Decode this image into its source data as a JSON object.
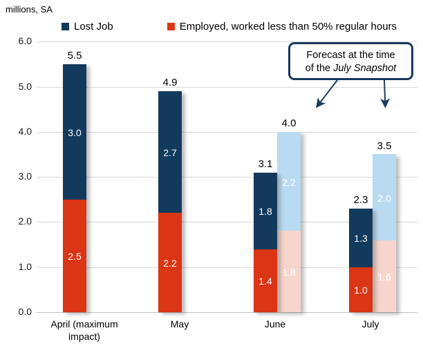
{
  "title": "millions, SA",
  "legend": {
    "items": [
      {
        "label": "Lost Job",
        "color": "#123a5c"
      },
      {
        "label": "Employed, worked less than 50% regular hours",
        "color": "#da3515"
      }
    ]
  },
  "annotation": {
    "line1": "Forecast at the time",
    "line2_prefix": "of the ",
    "line2_italic": "July Snapshot"
  },
  "chart_data": {
    "type": "bar",
    "stacked": true,
    "title": "millions, SA",
    "ylabel": "millions, SA",
    "ylim": [
      0,
      6
    ],
    "yticks": [
      "0.0",
      "1.0",
      "2.0",
      "3.0",
      "4.0",
      "5.0",
      "6.0"
    ],
    "grid": true,
    "legend_position": "top",
    "categories": [
      "April (maximum impact)",
      "May",
      "June",
      "July"
    ],
    "category_keys": [
      "april",
      "may",
      "june",
      "july"
    ],
    "series": [
      {
        "name": "Employed, worked less than 50% regular hours",
        "color": "#da3515",
        "label_color": "#ffffff",
        "values": [
          2.5,
          2.2,
          1.4,
          1.0
        ]
      },
      {
        "name": "Lost Job",
        "color": "#123a5c",
        "label_color": "#ffffff",
        "values": [
          3.0,
          2.7,
          1.8,
          1.3
        ]
      }
    ],
    "totals": [
      5.5,
      4.9,
      3.1,
      2.3
    ],
    "forecast": {
      "note": "Forecast at the time of the July Snapshot",
      "series": [
        {
          "name": "Employed, worked less than 50% regular hours (forecast)",
          "color": "#f7d5cd",
          "label_color": "#ffffff",
          "values": [
            null,
            null,
            1.8,
            1.6
          ]
        },
        {
          "name": "Lost Job (forecast)",
          "color": "#b9dbf2",
          "label_color": "#ffffff",
          "values": [
            null,
            null,
            2.2,
            2.0
          ]
        }
      ],
      "totals": [
        null,
        null,
        4.0,
        3.5
      ]
    },
    "annotation_arrow_color": "#1b3d5f"
  }
}
